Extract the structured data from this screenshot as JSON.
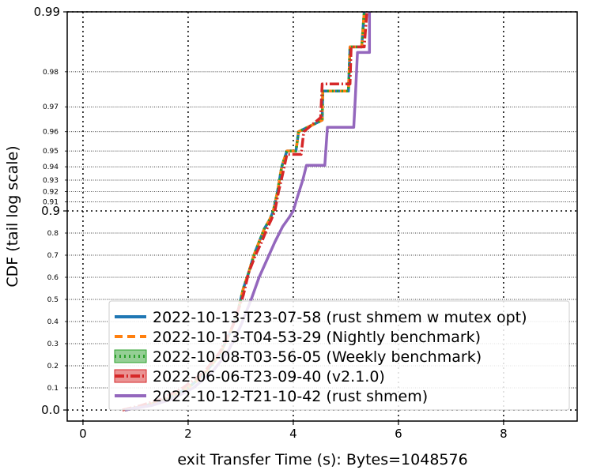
{
  "chart_data": {
    "type": "line",
    "xlabel": "exit Transfer Time (s): Bytes=1048576",
    "ylabel": "CDF (tail log scale)",
    "xlim": [
      -0.3,
      9.4
    ],
    "ylim": [
      -0.02,
      0.99
    ],
    "x_ticks": [
      {
        "value": 0,
        "label": "0"
      },
      {
        "value": 2,
        "label": "2"
      },
      {
        "value": 4,
        "label": "4"
      },
      {
        "value": 6,
        "label": "6"
      },
      {
        "value": 8,
        "label": "8"
      }
    ],
    "y_ticks_major": [
      {
        "value": 0.0,
        "label": "0.0"
      },
      {
        "value": 0.9,
        "label": "0.9"
      },
      {
        "value": 0.99,
        "label": "0.99"
      }
    ],
    "y_ticks_minor": [
      {
        "value": 0.1,
        "label": "0.1"
      },
      {
        "value": 0.2,
        "label": "0.2"
      },
      {
        "value": 0.3,
        "label": "0.3"
      },
      {
        "value": 0.4,
        "label": "0.4"
      },
      {
        "value": 0.5,
        "label": "0.5"
      },
      {
        "value": 0.6,
        "label": "0.6"
      },
      {
        "value": 0.7,
        "label": "0.7"
      },
      {
        "value": 0.8,
        "label": "0.8"
      },
      {
        "value": 0.91,
        "label": "0.91"
      },
      {
        "value": 0.92,
        "label": "0.92"
      },
      {
        "value": 0.93,
        "label": "0.93"
      },
      {
        "value": 0.94,
        "label": "0.94"
      },
      {
        "value": 0.95,
        "label": "0.95"
      },
      {
        "value": 0.96,
        "label": "0.96"
      },
      {
        "value": 0.97,
        "label": "0.97"
      },
      {
        "value": 0.98,
        "label": "0.98"
      }
    ],
    "grid": true,
    "legend_position": "lower-right",
    "series": [
      {
        "name": "2022-10-13-T23-07-58 (rust shmem w mutex opt)",
        "color": "#1f77b4",
        "style": "solid",
        "points": [
          [
            0.8,
            0.0
          ],
          [
            1.2,
            0.02
          ],
          [
            1.6,
            0.05
          ],
          [
            2.0,
            0.1
          ],
          [
            2.3,
            0.16
          ],
          [
            2.6,
            0.25
          ],
          [
            2.8,
            0.35
          ],
          [
            2.95,
            0.45
          ],
          [
            3.05,
            0.55
          ],
          [
            3.15,
            0.62
          ],
          [
            3.25,
            0.7
          ],
          [
            3.35,
            0.76
          ],
          [
            3.45,
            0.82
          ],
          [
            3.55,
            0.86
          ],
          [
            3.62,
            0.9
          ],
          [
            3.7,
            0.92
          ],
          [
            3.78,
            0.94
          ],
          [
            3.88,
            0.95
          ],
          [
            4.05,
            0.95
          ],
          [
            4.1,
            0.96
          ],
          [
            4.55,
            0.965
          ],
          [
            4.56,
            0.975
          ],
          [
            5.05,
            0.975
          ],
          [
            5.08,
            0.985
          ],
          [
            5.3,
            0.985
          ],
          [
            5.35,
            0.99
          ]
        ]
      },
      {
        "name": "2022-10-13-T04-53-29 (Nightly benchmark)",
        "color": "#ff7f0e",
        "style": "dashed",
        "points": [
          [
            0.8,
            0.0
          ],
          [
            1.2,
            0.02
          ],
          [
            1.6,
            0.05
          ],
          [
            2.0,
            0.1
          ],
          [
            2.3,
            0.16
          ],
          [
            2.6,
            0.25
          ],
          [
            2.8,
            0.35
          ],
          [
            2.95,
            0.45
          ],
          [
            3.05,
            0.55
          ],
          [
            3.15,
            0.62
          ],
          [
            3.25,
            0.7
          ],
          [
            3.35,
            0.76
          ],
          [
            3.45,
            0.82
          ],
          [
            3.55,
            0.86
          ],
          [
            3.62,
            0.9
          ],
          [
            3.7,
            0.92
          ],
          [
            3.78,
            0.94
          ],
          [
            3.88,
            0.95
          ],
          [
            4.05,
            0.95
          ],
          [
            4.1,
            0.96
          ],
          [
            4.55,
            0.965
          ],
          [
            4.56,
            0.975
          ],
          [
            5.05,
            0.975
          ],
          [
            5.08,
            0.985
          ],
          [
            5.3,
            0.985
          ],
          [
            5.35,
            0.99
          ]
        ]
      },
      {
        "name": "2022-10-08-T03-56-05 (Weekly benchmark)",
        "color": "#2ca02c",
        "style": "dotted",
        "points": [
          [
            0.8,
            0.0
          ],
          [
            1.2,
            0.02
          ],
          [
            1.6,
            0.05
          ],
          [
            2.0,
            0.1
          ],
          [
            2.3,
            0.16
          ],
          [
            2.6,
            0.25
          ],
          [
            2.8,
            0.35
          ],
          [
            2.95,
            0.45
          ],
          [
            3.05,
            0.55
          ],
          [
            3.15,
            0.62
          ],
          [
            3.25,
            0.7
          ],
          [
            3.35,
            0.76
          ],
          [
            3.45,
            0.82
          ],
          [
            3.55,
            0.86
          ],
          [
            3.62,
            0.9
          ],
          [
            3.7,
            0.92
          ],
          [
            3.78,
            0.94
          ],
          [
            3.88,
            0.95
          ],
          [
            4.05,
            0.95
          ],
          [
            4.1,
            0.96
          ],
          [
            4.55,
            0.965
          ],
          [
            4.56,
            0.975
          ],
          [
            5.05,
            0.975
          ],
          [
            5.08,
            0.985
          ],
          [
            5.3,
            0.985
          ],
          [
            5.35,
            0.99
          ]
        ]
      },
      {
        "name": "2022-06-06-T23-09-40 (v2.1.0)",
        "color": "#d62728",
        "style": "dashdot",
        "points": [
          [
            0.75,
            0.0
          ],
          [
            1.1,
            0.02
          ],
          [
            1.5,
            0.05
          ],
          [
            1.9,
            0.1
          ],
          [
            2.3,
            0.17
          ],
          [
            2.6,
            0.26
          ],
          [
            2.85,
            0.38
          ],
          [
            3.05,
            0.52
          ],
          [
            3.15,
            0.62
          ],
          [
            3.28,
            0.7
          ],
          [
            3.4,
            0.76
          ],
          [
            3.5,
            0.82
          ],
          [
            3.58,
            0.86
          ],
          [
            3.65,
            0.9
          ],
          [
            3.72,
            0.92
          ],
          [
            3.8,
            0.935
          ],
          [
            3.88,
            0.948
          ],
          [
            4.15,
            0.948
          ],
          [
            4.2,
            0.96
          ],
          [
            4.52,
            0.966
          ],
          [
            4.55,
            0.977
          ],
          [
            5.08,
            0.977
          ],
          [
            5.1,
            0.985
          ],
          [
            5.35,
            0.985
          ],
          [
            5.4,
            0.99
          ]
        ]
      },
      {
        "name": "2022-10-12-T21-10-42 (rust shmem)",
        "color": "#9467bd",
        "style": "solid",
        "points": [
          [
            0.8,
            0.0
          ],
          [
            1.3,
            0.02
          ],
          [
            1.7,
            0.05
          ],
          [
            2.1,
            0.1
          ],
          [
            2.45,
            0.17
          ],
          [
            2.75,
            0.26
          ],
          [
            3.0,
            0.38
          ],
          [
            3.2,
            0.5
          ],
          [
            3.35,
            0.6
          ],
          [
            3.5,
            0.68
          ],
          [
            3.65,
            0.76
          ],
          [
            3.8,
            0.83
          ],
          [
            3.92,
            0.87
          ],
          [
            4.0,
            0.9
          ],
          [
            4.08,
            0.915
          ],
          [
            4.18,
            0.93
          ],
          [
            4.25,
            0.941
          ],
          [
            4.6,
            0.941
          ],
          [
            4.62,
            0.951
          ],
          [
            4.65,
            0.962
          ],
          [
            5.15,
            0.962
          ],
          [
            5.18,
            0.973
          ],
          [
            5.22,
            0.984
          ],
          [
            5.45,
            0.984
          ],
          [
            5.45,
            0.99
          ]
        ]
      }
    ]
  }
}
